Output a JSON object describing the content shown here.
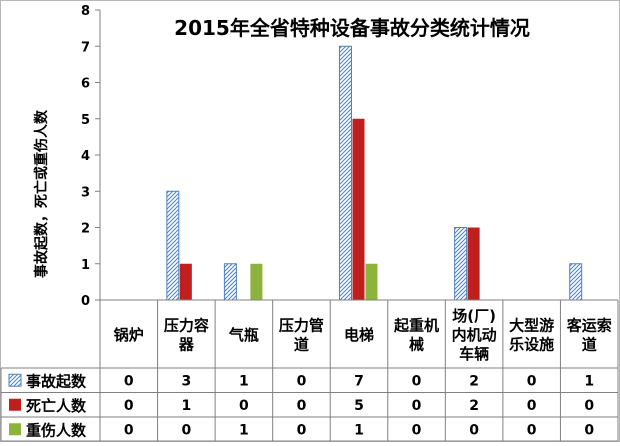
{
  "chart_data": {
    "type": "bar",
    "title": "2015年全省特种设备事故分类统计情况",
    "ylabel": "事故起数，死亡或重伤人数",
    "ylim": [
      0,
      8
    ],
    "yticks": [
      "0",
      "1",
      "2",
      "3",
      "4",
      "5",
      "6",
      "7",
      "8"
    ],
    "grid": false,
    "legend": "table-left",
    "categories": [
      [
        "锅炉"
      ],
      [
        "压力容",
        "器"
      ],
      [
        "气瓶"
      ],
      [
        "压力管",
        "道"
      ],
      [
        "电梯"
      ],
      [
        "起重机",
        "械"
      ],
      [
        "场(厂)",
        "内机动",
        "车辆"
      ],
      [
        "大型游",
        "乐设施"
      ],
      [
        "客运索",
        "道"
      ]
    ],
    "series": [
      {
        "name": "事故起数",
        "color": "#4f81bd",
        "pattern": "hatch",
        "values": [
          0,
          3,
          1,
          0,
          7,
          0,
          2,
          0,
          1
        ],
        "labels": [
          "0",
          "3",
          "1",
          "0",
          "7",
          "0",
          "2",
          "0",
          "1"
        ]
      },
      {
        "name": "死亡人数",
        "color": "#c0201d",
        "pattern": "solid",
        "values": [
          0,
          1,
          0,
          0,
          5,
          0,
          2,
          0,
          0
        ],
        "labels": [
          "0",
          "1",
          "0",
          "0",
          "5",
          "0",
          "2",
          "0",
          "0"
        ]
      },
      {
        "name": "重伤人数",
        "color": "#8cb43c",
        "pattern": "solid",
        "values": [
          0,
          0,
          1,
          0,
          1,
          0,
          0,
          0,
          0
        ],
        "labels": [
          "0",
          "0",
          "1",
          "0",
          "1",
          "0",
          "0",
          "0",
          "0"
        ]
      }
    ]
  }
}
